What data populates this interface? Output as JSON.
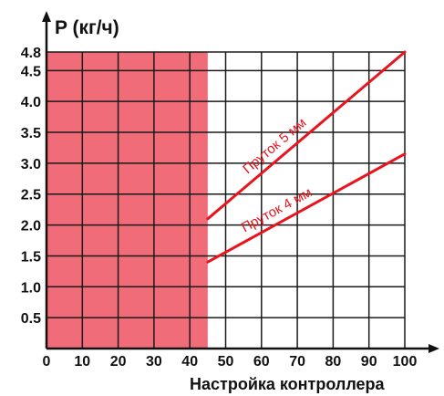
{
  "chart_data": {
    "type": "line",
    "title": "",
    "ylabel": "P (кг/ч)",
    "xlabel": "Настройка контроллера",
    "xlim": [
      0,
      100
    ],
    "ylim": [
      0,
      4.8
    ],
    "x_ticks": [
      0,
      10,
      20,
      30,
      40,
      50,
      60,
      70,
      80,
      90,
      100
    ],
    "x_tick_labels": [
      "0",
      "10",
      "20",
      "30",
      "40",
      "50",
      "60",
      "70",
      "80",
      "90",
      "100"
    ],
    "y_ticks": [
      0.5,
      1.0,
      1.5,
      2.0,
      2.5,
      3.0,
      3.5,
      4.0,
      4.5,
      4.8
    ],
    "y_tick_labels": [
      "0.5",
      "1.0",
      "1.5",
      "2.0",
      "2.5",
      "3.0",
      "3.5",
      "4.0",
      "4.5",
      "4.8"
    ],
    "grid": true,
    "shaded_region": {
      "x_from": 0,
      "x_to": 45,
      "color": "#f06c78"
    },
    "series": [
      {
        "name": "Пруток 5 мм",
        "x": [
          45,
          100
        ],
        "y": [
          2.1,
          4.8
        ],
        "color": "#e8141e"
      },
      {
        "name": "Пруток 4 мм",
        "x": [
          45,
          100
        ],
        "y": [
          1.4,
          3.15
        ],
        "color": "#e8141e"
      }
    ]
  }
}
